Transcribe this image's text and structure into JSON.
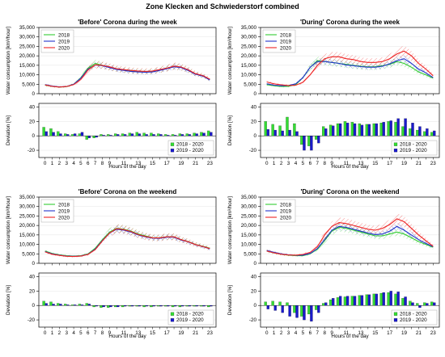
{
  "title": "Zone Klecken and Schwiederstorf combined",
  "colors": {
    "y2018": "#33cc33",
    "y2019": "#2233cc",
    "y2020": "#ee2222",
    "bar2018": "#33dd33",
    "bar2019": "#1a1acc"
  },
  "chart_data": [
    {
      "type": "line",
      "title": "'Before' Corona during the week",
      "ylabel": "Water consumption [km³/hour]",
      "ylim": [
        0,
        35000
      ],
      "yticks": [
        "0",
        "5,000",
        "10,000",
        "15,000",
        "20,000",
        "25,000",
        "30,000",
        "35,000"
      ],
      "legend_position": "top-left",
      "series": [
        {
          "name": "2018",
          "values": [
            4500,
            3900,
            3500,
            3700,
            5000,
            8500,
            13500,
            16000,
            15000,
            14000,
            13000,
            12500,
            12000,
            11800,
            11500,
            11800,
            12500,
            13500,
            14500,
            14000,
            12500,
            10500,
            9500,
            7500
          ]
        },
        {
          "name": "2019",
          "values": [
            4800,
            4000,
            3600,
            3800,
            5000,
            8200,
            13000,
            15200,
            14800,
            13800,
            12800,
            12300,
            11800,
            11500,
            11300,
            11500,
            12300,
            13200,
            14200,
            13800,
            12200,
            10300,
            9300,
            7300
          ]
        },
        {
          "name": "2020",
          "values": [
            4600,
            3900,
            3500,
            3800,
            4800,
            7500,
            12500,
            15300,
            15000,
            14200,
            13200,
            12700,
            12300,
            12000,
            11800,
            12000,
            12700,
            13500,
            14600,
            14100,
            12600,
            10600,
            9600,
            7700
          ]
        }
      ]
    },
    {
      "type": "bar",
      "ylabel": "Deviation [%]",
      "xlabel": "Hours of the day",
      "ylim": [
        -30,
        45
      ],
      "yticks": [
        "-20",
        "0",
        "20",
        "40"
      ],
      "legend_position": "bottom-right",
      "series": [
        {
          "name": "2018 - 2020",
          "values": [
            12,
            10,
            6,
            3,
            2,
            3,
            -5,
            -3,
            2,
            2,
            3,
            3,
            4,
            5,
            4,
            4,
            3,
            2,
            2,
            3,
            3,
            4,
            5,
            7
          ]
        },
        {
          "name": "2019 - 2020",
          "values": [
            6,
            5,
            3,
            2,
            3,
            5,
            -3,
            -2,
            1,
            1,
            2,
            2,
            3,
            3,
            2,
            2,
            2,
            1,
            1,
            2,
            2,
            3,
            4,
            5
          ]
        }
      ]
    },
    {
      "type": "line",
      "title": "'During' Corona during the week",
      "ylabel": "Water consumption [km³/hour]",
      "ylim": [
        0,
        35000
      ],
      "yticks": [
        "0",
        "5,000",
        "10,000",
        "15,000",
        "20,000",
        "25,000",
        "30,000",
        "35,000"
      ],
      "legend_position": "top-left",
      "series": [
        {
          "name": "2018",
          "values": [
            4800,
            4200,
            3800,
            3900,
            4800,
            8500,
            14000,
            17500,
            17000,
            16500,
            16000,
            15500,
            15000,
            14500,
            14200,
            14300,
            14800,
            15500,
            17000,
            16000,
            14000,
            11500,
            10000,
            8200
          ]
        },
        {
          "name": "2019",
          "values": [
            5200,
            4500,
            4200,
            4300,
            5200,
            8500,
            14000,
            17000,
            17000,
            16500,
            16000,
            15200,
            14800,
            14300,
            14000,
            14000,
            14500,
            15800,
            17500,
            18500,
            16000,
            13000,
            11000,
            8500
          ]
        },
        {
          "name": "2020",
          "values": [
            6200,
            5200,
            4700,
            4300,
            4500,
            6000,
            10000,
            15000,
            18500,
            19500,
            19500,
            18500,
            18000,
            17000,
            16500,
            16500,
            17000,
            18500,
            21000,
            22500,
            20000,
            16000,
            13000,
            9500
          ]
        }
      ]
    },
    {
      "type": "bar",
      "ylabel": "Deviation [%]",
      "xlabel": "Hours of the day",
      "ylim": [
        -30,
        45
      ],
      "yticks": [
        "-20",
        "0",
        "20",
        "40"
      ],
      "legend_position": "bottom-right",
      "series": [
        {
          "name": "2018 - 2020",
          "values": [
            20,
            16,
            14,
            26,
            17,
            -12,
            -14,
            -5,
            13,
            15,
            17,
            20,
            19,
            17,
            16,
            17,
            18,
            20,
            19,
            13,
            10,
            8,
            6,
            5
          ]
        },
        {
          "name": "2019 - 2020",
          "values": [
            9,
            8,
            7,
            8,
            6,
            -20,
            -20,
            -10,
            10,
            14,
            17,
            18,
            17,
            15,
            16,
            17,
            19,
            21,
            24,
            24,
            18,
            13,
            10,
            7
          ]
        }
      ]
    },
    {
      "type": "line",
      "title": "'Before' Corona on the weekend",
      "ylabel": "Water consumption [km³/hour]",
      "ylim": [
        0,
        35000
      ],
      "yticks": [
        "0",
        "5,000",
        "10,000",
        "15,000",
        "20,000",
        "25,000",
        "30,000",
        "35,000"
      ],
      "legend_position": "top-left",
      "series": [
        {
          "name": "2018",
          "values": [
            6500,
            5200,
            4500,
            4000,
            3800,
            4000,
            5000,
            8000,
            12500,
            16500,
            18500,
            18000,
            17000,
            15500,
            14500,
            13500,
            13500,
            14000,
            14000,
            12500,
            11500,
            10000,
            9000,
            8000
          ]
        },
        {
          "name": "2019",
          "values": [
            6200,
            5000,
            4300,
            3800,
            3700,
            3900,
            4800,
            7500,
            12000,
            16000,
            18000,
            17500,
            16500,
            15000,
            14000,
            13300,
            13200,
            13800,
            13800,
            12300,
            11300,
            9800,
            8800,
            7700
          ]
        },
        {
          "name": "2020",
          "values": [
            6000,
            4800,
            4200,
            3700,
            3600,
            3800,
            4700,
            7200,
            11800,
            16000,
            18300,
            17800,
            16800,
            15200,
            14200,
            13500,
            13400,
            14000,
            14000,
            12500,
            11400,
            9900,
            8900,
            7800
          ]
        }
      ]
    },
    {
      "type": "bar",
      "ylabel": "Deviation [%]",
      "xlabel": "Hours of the day",
      "ylim": [
        -30,
        45
      ],
      "yticks": [
        "-20",
        "0",
        "20",
        "40"
      ],
      "legend_position": "bottom-right",
      "series": [
        {
          "name": "2018 - 2020",
          "values": [
            6,
            5,
            3,
            2,
            1,
            2,
            3,
            -2,
            -3,
            -3,
            -2,
            -2,
            -1,
            -1,
            -2,
            -2,
            -1,
            -1,
            -2,
            -2,
            -1,
            -1,
            -1,
            -2
          ]
        },
        {
          "name": "2019 - 2020",
          "values": [
            3,
            2,
            2,
            1,
            1,
            1,
            2,
            -1,
            -2,
            -2,
            -2,
            -1,
            -1,
            -1,
            -1,
            -1,
            -1,
            -1,
            -1,
            -1,
            -1,
            -1,
            -1,
            -1
          ]
        }
      ]
    },
    {
      "type": "line",
      "title": "'During' Corona on the weekend",
      "ylabel": "Water consumption [km³/hour]",
      "ylim": [
        0,
        35000
      ],
      "yticks": [
        "0",
        "5,000",
        "10,000",
        "15,000",
        "20,000",
        "25,000",
        "30,000",
        "35,000"
      ],
      "legend_position": "top-left",
      "series": [
        {
          "name": "2018",
          "values": [
            6500,
            5500,
            4800,
            4300,
            4000,
            4000,
            5000,
            7500,
            12000,
            17000,
            19000,
            18500,
            17500,
            16500,
            15500,
            14500,
            14500,
            15500,
            16500,
            15500,
            13500,
            11500,
            10000,
            8500
          ]
        },
        {
          "name": "2019",
          "values": [
            6800,
            5800,
            5000,
            4500,
            4200,
            4300,
            5200,
            7800,
            12500,
            17500,
            19500,
            19000,
            18000,
            17000,
            16000,
            15200,
            15500,
            17000,
            19500,
            17500,
            15000,
            12500,
            10500,
            8800
          ]
        },
        {
          "name": "2020",
          "values": [
            6500,
            5500,
            4800,
            4400,
            4300,
            4700,
            5800,
            8800,
            15000,
            19500,
            21500,
            21000,
            20000,
            19000,
            18000,
            17500,
            18500,
            20500,
            23500,
            22000,
            18500,
            15000,
            12000,
            9000
          ]
        }
      ]
    },
    {
      "type": "bar",
      "ylabel": "Deviation [%]",
      "xlabel": "Hours of the day",
      "ylim": [
        -30,
        45
      ],
      "yticks": [
        "-20",
        "0",
        "20",
        "40"
      ],
      "legend_position": "bottom-right",
      "series": [
        {
          "name": "2018 - 2020",
          "values": [
            5,
            6,
            5,
            4,
            -10,
            -15,
            -12,
            -6,
            3,
            8,
            11,
            12,
            13,
            14,
            15,
            16,
            17,
            18,
            16,
            10,
            6,
            3,
            4,
            5
          ]
        },
        {
          "name": "2019 - 2020",
          "values": [
            -5,
            -7,
            -10,
            -15,
            -17,
            -20,
            -22,
            -10,
            4,
            10,
            13,
            13,
            13,
            14,
            15,
            16,
            18,
            20,
            19,
            12,
            4,
            -3,
            3,
            4
          ]
        }
      ]
    }
  ]
}
